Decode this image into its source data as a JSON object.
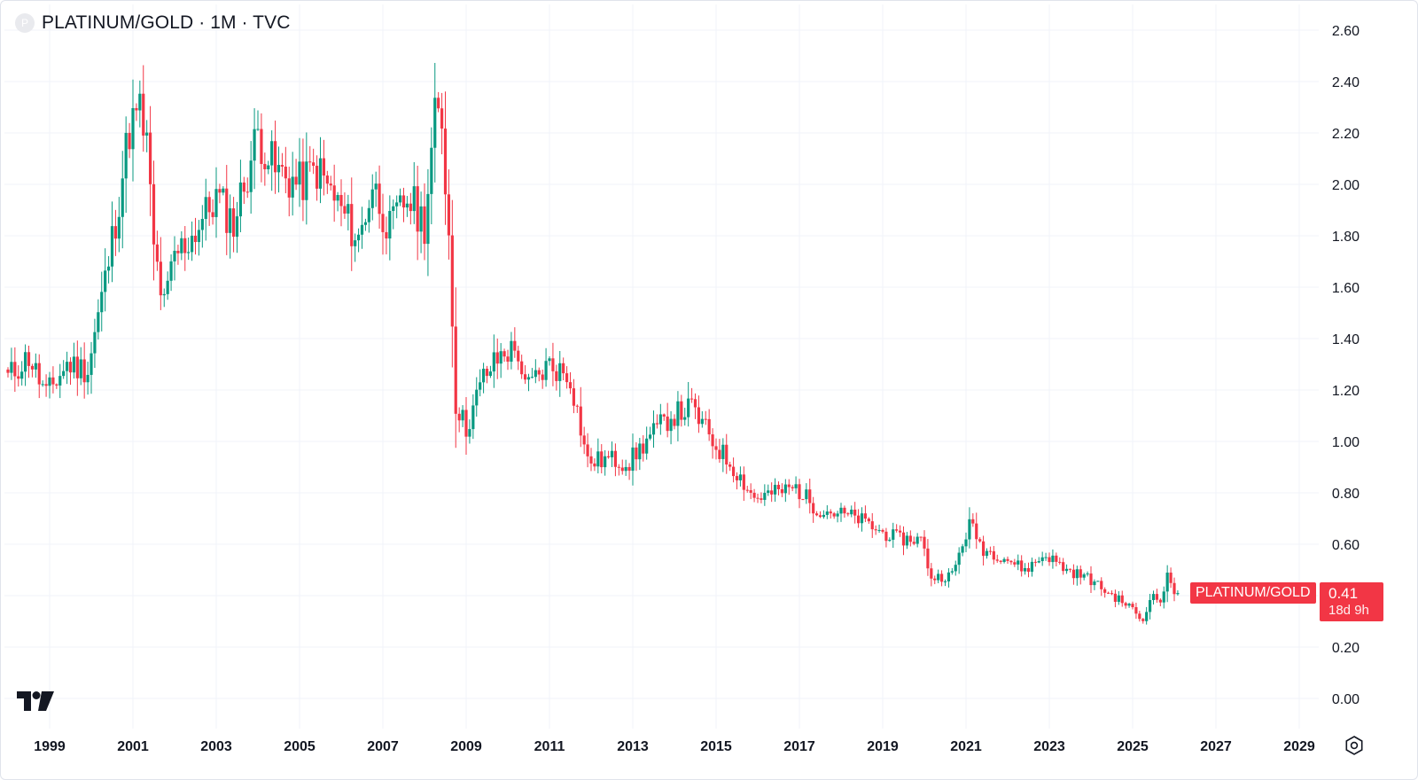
{
  "legend": {
    "symbol_initial": "P",
    "title": "PLATINUM/GOLD · 1M · TVC"
  },
  "price_tag": {
    "series_name": "PLATINUM/GOLD",
    "last_price": "0.41",
    "countdown": "18d 9h"
  },
  "icons": {
    "logo": "tradingview-logo-icon",
    "settings": "settings-icon"
  },
  "colors": {
    "up": "#089981",
    "down": "#f23645",
    "grid": "#f0f3fa",
    "text": "#131722"
  },
  "chart_data": {
    "type": "candlestick",
    "interval": "1M",
    "x_axis": {
      "ticks": [
        "1999",
        "2001",
        "2003",
        "2005",
        "2007",
        "2009",
        "2011",
        "2013",
        "2015",
        "2017",
        "2019",
        "2021",
        "2023",
        "2025",
        "2027",
        "2029"
      ],
      "range": [
        "1998-01",
        "2029-01"
      ]
    },
    "y_axis": {
      "ticks": [
        "0.00",
        "0.20",
        "0.40",
        "0.60",
        "0.80",
        "1.00",
        "1.20",
        "1.40",
        "1.60",
        "1.80",
        "2.00",
        "2.20",
        "2.40",
        "2.60"
      ],
      "range": [
        0.0,
        2.6
      ],
      "side": "right"
    },
    "grid": true,
    "last_value": 0.41,
    "close_path": [
      [
        "1998-01",
        1.25
      ],
      [
        "1998-07",
        1.33
      ],
      [
        "1998-12",
        1.18
      ],
      [
        "1999-06",
        1.3
      ],
      [
        "1999-12",
        1.28
      ],
      [
        "2000-06",
        1.7
      ],
      [
        "2000-09",
        1.95
      ],
      [
        "2000-12",
        2.22
      ],
      [
        "2001-03",
        2.28
      ],
      [
        "2001-05",
        2.15
      ],
      [
        "2001-07",
        1.75
      ],
      [
        "2001-10",
        1.52
      ],
      [
        "2002-01",
        1.72
      ],
      [
        "2002-06",
        1.8
      ],
      [
        "2003-01",
        1.95
      ],
      [
        "2003-06",
        1.85
      ],
      [
        "2004-01",
        2.2
      ],
      [
        "2004-06",
        2.05
      ],
      [
        "2005-01",
        2.0
      ],
      [
        "2005-06",
        2.06
      ],
      [
        "2006-01",
        1.9
      ],
      [
        "2006-06",
        1.78
      ],
      [
        "2006-10",
        2.0
      ],
      [
        "2007-03",
        1.82
      ],
      [
        "2007-08",
        1.95
      ],
      [
        "2008-01",
        1.85
      ],
      [
        "2008-04",
        2.25
      ],
      [
        "2008-06",
        2.25
      ],
      [
        "2008-08",
        1.8
      ],
      [
        "2008-10",
        1.15
      ],
      [
        "2009-01",
        1.05
      ],
      [
        "2009-06",
        1.25
      ],
      [
        "2009-12",
        1.35
      ],
      [
        "2010-04",
        1.35
      ],
      [
        "2010-06",
        1.2
      ],
      [
        "2011-01",
        1.3
      ],
      [
        "2011-07",
        1.25
      ],
      [
        "2011-12",
        0.92
      ],
      [
        "2012-06",
        0.93
      ],
      [
        "2012-12",
        0.92
      ],
      [
        "2013-06",
        1.02
      ],
      [
        "2013-12",
        1.1
      ],
      [
        "2014-06",
        1.13
      ],
      [
        "2014-12",
        1.0
      ],
      [
        "2015-06",
        0.9
      ],
      [
        "2015-12",
        0.78
      ],
      [
        "2016-06",
        0.8
      ],
      [
        "2016-12",
        0.82
      ],
      [
        "2017-06",
        0.74
      ],
      [
        "2017-12",
        0.72
      ],
      [
        "2018-06",
        0.7
      ],
      [
        "2018-12",
        0.65
      ],
      [
        "2019-06",
        0.62
      ],
      [
        "2019-12",
        0.62
      ],
      [
        "2020-03",
        0.47
      ],
      [
        "2020-09",
        0.48
      ],
      [
        "2021-02",
        0.68
      ],
      [
        "2021-06",
        0.58
      ],
      [
        "2021-12",
        0.55
      ],
      [
        "2022-06",
        0.5
      ],
      [
        "2022-12",
        0.56
      ],
      [
        "2023-06",
        0.5
      ],
      [
        "2023-12",
        0.47
      ],
      [
        "2024-06",
        0.41
      ],
      [
        "2024-12",
        0.36
      ],
      [
        "2025-04",
        0.3
      ],
      [
        "2025-06",
        0.4
      ],
      [
        "2025-09",
        0.38
      ],
      [
        "2025-11",
        0.47
      ],
      [
        "2026-01",
        0.42
      ],
      [
        "2026-02",
        0.41
      ]
    ]
  }
}
